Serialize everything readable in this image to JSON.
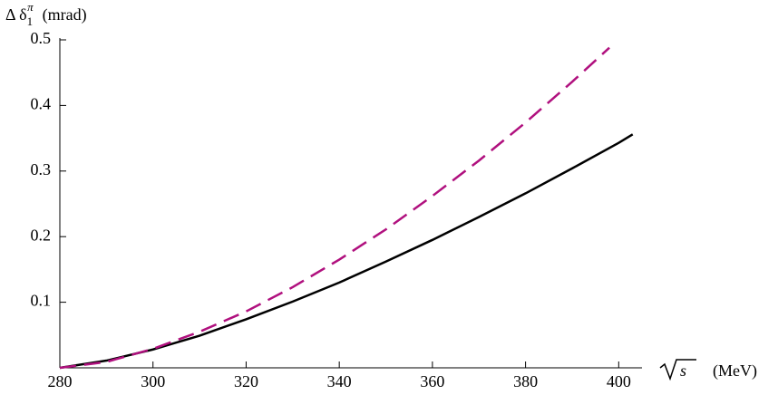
{
  "chart_data": {
    "type": "line",
    "ylabel": {
      "symbol": "Δ δ",
      "sub": "1",
      "sup": "π",
      "unit": "(mrad)"
    },
    "xlabel": {
      "symbol": "s",
      "unit": "(MeV)"
    },
    "xlim": [
      280,
      405
    ],
    "ylim": [
      0,
      0.5
    ],
    "xticks": [
      280,
      300,
      320,
      340,
      360,
      380,
      400
    ],
    "yticks": [
      0.1,
      0.2,
      0.3,
      0.4,
      0.5
    ],
    "series": [
      {
        "color": "#000000",
        "dash": false,
        "x": [
          280,
          290,
          300,
          310,
          320,
          330,
          340,
          350,
          360,
          370,
          380,
          390,
          400,
          403
        ],
        "values": [
          0,
          0.011,
          0.028,
          0.049,
          0.074,
          0.101,
          0.13,
          0.162,
          0.195,
          0.23,
          0.266,
          0.304,
          0.343,
          0.356
        ]
      },
      {
        "color": "#b0107e",
        "dash": true,
        "x": [
          280,
          290,
          300,
          310,
          320,
          330,
          340,
          350,
          360,
          370,
          380,
          390,
          398
        ],
        "values": [
          0,
          0.009,
          0.029,
          0.055,
          0.086,
          0.123,
          0.165,
          0.211,
          0.262,
          0.316,
          0.374,
          0.436,
          0.488
        ]
      }
    ]
  }
}
